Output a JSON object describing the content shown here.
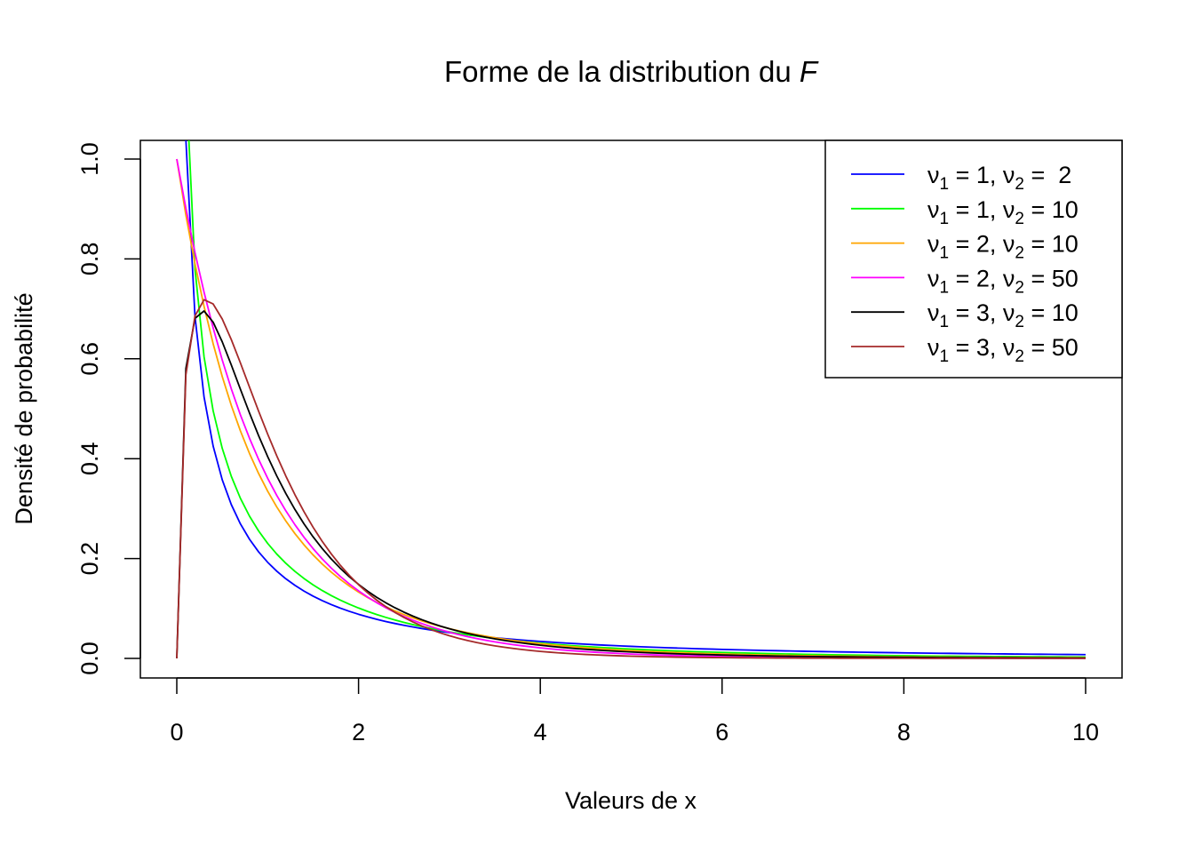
{
  "chart_data": {
    "type": "line",
    "title": "Forme de la distribution du",
    "title_italic": "F",
    "xlabel": "Valeurs de x",
    "ylabel": "Densité de probabilité",
    "xlim": [
      -0.4,
      10.4
    ],
    "ylim": [
      -0.04,
      1.04
    ],
    "xticks": [
      "0",
      "2",
      "4",
      "6",
      "8",
      "10"
    ],
    "xtick_values": [
      0,
      2,
      4,
      6,
      8,
      10
    ],
    "yticks": [
      "0.0",
      "0.2",
      "0.4",
      "0.6",
      "0.8",
      "1.0"
    ],
    "ytick_values": [
      0,
      0.2,
      0.4,
      0.6,
      0.8,
      1.0
    ],
    "grid": false,
    "legend_position": "top-right",
    "x_step": 0.1,
    "x_start": 0,
    "x_end": 10,
    "legend": [
      {
        "symbol": "ν",
        "sub1": "1",
        "eq1": " = 1, ",
        "sub2": "2",
        "eq2": " =  2"
      },
      {
        "symbol": "ν",
        "sub1": "1",
        "eq1": " = 1, ",
        "sub2": "2",
        "eq2": " = 10"
      },
      {
        "symbol": "ν",
        "sub1": "1",
        "eq1": " = 2, ",
        "sub2": "2",
        "eq2": " = 10"
      },
      {
        "symbol": "ν",
        "sub1": "1",
        "eq1": " = 2, ",
        "sub2": "2",
        "eq2": " = 50"
      },
      {
        "symbol": "ν",
        "sub1": "1",
        "eq1": " = 3, ",
        "sub2": "2",
        "eq2": " = 10"
      },
      {
        "symbol": "ν",
        "sub1": "1",
        "eq1": " = 3, ",
        "sub2": "2",
        "eq2": " = 50"
      }
    ],
    "series": [
      {
        "distribution": "F",
        "df1": 1,
        "df2": 2,
        "color": "#0000FF"
      },
      {
        "distribution": "F",
        "df1": 1,
        "df2": 10,
        "color": "#00FF00"
      },
      {
        "distribution": "F",
        "df1": 2,
        "df2": 10,
        "color": "#FFA500"
      },
      {
        "distribution": "F",
        "df1": 2,
        "df2": 50,
        "color": "#FF00FF"
      },
      {
        "distribution": "F",
        "df1": 3,
        "df2": 10,
        "color": "#000000"
      },
      {
        "distribution": "F",
        "df1": 3,
        "df2": 50,
        "color": "#A52A2A"
      }
    ]
  }
}
